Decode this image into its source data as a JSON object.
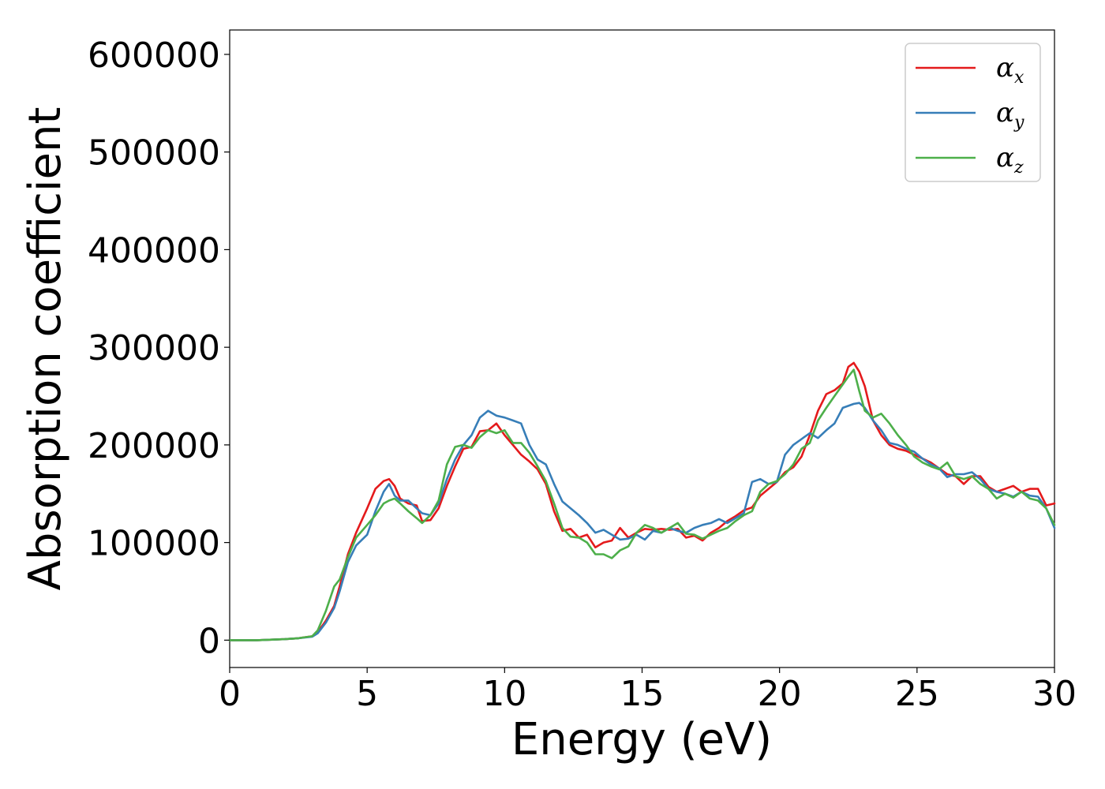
{
  "chart_data": {
    "type": "line",
    "xlabel": "Energy (eV)",
    "ylabel": "Absorption coefficient",
    "xlim": [
      0,
      30
    ],
    "ylim": [
      -28000,
      625000
    ],
    "xticks": [
      0,
      5,
      10,
      15,
      20,
      25,
      30
    ],
    "yticks": [
      0,
      100000,
      200000,
      300000,
      400000,
      500000,
      600000
    ],
    "grid": false,
    "legend_position": "top-right",
    "series": [
      {
        "name": "α",
        "subscript": "x",
        "color": "#e41a1c",
        "x": [
          0,
          1,
          2,
          2.5,
          3,
          3.2,
          3.5,
          3.8,
          4,
          4.3,
          4.6,
          5,
          5.3,
          5.6,
          5.8,
          6,
          6.2,
          6.5,
          6.8,
          7,
          7.3,
          7.6,
          7.9,
          8.2,
          8.5,
          8.8,
          9.1,
          9.4,
          9.7,
          10,
          10.3,
          10.6,
          10.9,
          11.2,
          11.5,
          11.8,
          12.1,
          12.4,
          12.7,
          13,
          13.3,
          13.6,
          13.9,
          14.2,
          14.5,
          14.8,
          15.1,
          15.4,
          15.7,
          16,
          16.3,
          16.6,
          16.9,
          17.2,
          17.5,
          17.8,
          18.1,
          18.4,
          18.7,
          19,
          19.3,
          19.6,
          19.9,
          20.2,
          20.5,
          20.8,
          21.1,
          21.4,
          21.7,
          22,
          22.3,
          22.5,
          22.7,
          22.9,
          23.1,
          23.4,
          23.7,
          24,
          24.3,
          24.6,
          24.9,
          25.2,
          25.5,
          25.8,
          26.1,
          26.4,
          26.7,
          27,
          27.3,
          27.6,
          27.9,
          28.2,
          28.5,
          28.8,
          29.1,
          29.4,
          29.7,
          30
        ],
        "y": [
          0,
          0,
          1000,
          2000,
          4000,
          8000,
          20000,
          35000,
          55000,
          88000,
          110000,
          135000,
          155000,
          163000,
          165000,
          158000,
          145000,
          140000,
          138000,
          122000,
          123000,
          135000,
          158000,
          178000,
          196000,
          198000,
          214000,
          215000,
          222000,
          210000,
          200000,
          190000,
          183000,
          175000,
          160000,
          132000,
          112000,
          114000,
          105000,
          108000,
          95000,
          100000,
          102000,
          115000,
          105000,
          110000,
          114000,
          113000,
          114000,
          113000,
          114000,
          105000,
          107000,
          102000,
          110000,
          115000,
          122000,
          127000,
          133000,
          136000,
          148000,
          155000,
          162000,
          172000,
          177000,
          188000,
          210000,
          235000,
          252000,
          256000,
          263000,
          280000,
          284000,
          275000,
          260000,
          225000,
          210000,
          200000,
          196000,
          194000,
          190000,
          186000,
          182000,
          176000,
          170000,
          168000,
          160000,
          168000,
          168000,
          157000,
          152000,
          155000,
          158000,
          152000,
          155000,
          155000,
          138000,
          140000
        ]
      },
      {
        "name": "α",
        "subscript": "y",
        "color": "#377eb8",
        "x": [
          0,
          1,
          2,
          2.5,
          3,
          3.2,
          3.5,
          3.8,
          4,
          4.3,
          4.6,
          5,
          5.3,
          5.6,
          5.8,
          6,
          6.2,
          6.5,
          6.8,
          7,
          7.3,
          7.6,
          7.9,
          8.2,
          8.5,
          8.8,
          9.1,
          9.4,
          9.7,
          10,
          10.3,
          10.6,
          10.9,
          11.2,
          11.5,
          11.8,
          12.1,
          12.4,
          12.7,
          13,
          13.3,
          13.6,
          13.9,
          14.2,
          14.5,
          14.8,
          15.1,
          15.4,
          15.7,
          16,
          16.3,
          16.6,
          16.9,
          17.2,
          17.5,
          17.8,
          18.1,
          18.4,
          18.7,
          19,
          19.3,
          19.6,
          19.9,
          20.2,
          20.5,
          20.8,
          21.1,
          21.4,
          21.7,
          22,
          22.3,
          22.5,
          22.7,
          22.9,
          23.1,
          23.4,
          23.7,
          24,
          24.3,
          24.6,
          24.9,
          25.2,
          25.5,
          25.8,
          26.1,
          26.4,
          26.7,
          27,
          27.3,
          27.6,
          27.9,
          28.2,
          28.5,
          28.8,
          29.1,
          29.4,
          29.7,
          30
        ],
        "y": [
          0,
          0,
          1000,
          2000,
          3500,
          7000,
          18000,
          33000,
          50000,
          80000,
          97000,
          108000,
          132000,
          152000,
          160000,
          148000,
          143000,
          143000,
          135000,
          130000,
          128000,
          140000,
          165000,
          185000,
          200000,
          210000,
          228000,
          235000,
          230000,
          228000,
          225000,
          222000,
          200000,
          185000,
          180000,
          160000,
          142000,
          135000,
          128000,
          120000,
          110000,
          113000,
          108000,
          103000,
          104000,
          108000,
          103000,
          112000,
          110000,
          115000,
          112000,
          110000,
          115000,
          118000,
          120000,
          124000,
          120000,
          125000,
          130000,
          162000,
          165000,
          160000,
          162000,
          190000,
          200000,
          206000,
          212000,
          207000,
          215000,
          222000,
          238000,
          240000,
          242000,
          243000,
          238000,
          225000,
          215000,
          202000,
          200000,
          196000,
          193000,
          186000,
          180000,
          176000,
          167000,
          170000,
          170000,
          172000,
          165000,
          155000,
          152000,
          150000,
          147000,
          152000,
          148000,
          147000,
          135000,
          115000
        ]
      },
      {
        "name": "α",
        "subscript": "z",
        "color": "#4daf4a",
        "x": [
          0,
          1,
          2,
          2.5,
          3,
          3.2,
          3.5,
          3.8,
          4,
          4.3,
          4.6,
          5,
          5.3,
          5.6,
          5.8,
          6,
          6.2,
          6.5,
          6.8,
          7,
          7.3,
          7.6,
          7.9,
          8.2,
          8.5,
          8.8,
          9.1,
          9.4,
          9.7,
          10,
          10.3,
          10.6,
          10.9,
          11.2,
          11.5,
          11.8,
          12.1,
          12.4,
          12.7,
          13,
          13.3,
          13.6,
          13.9,
          14.2,
          14.5,
          14.8,
          15.1,
          15.4,
          15.7,
          16,
          16.3,
          16.6,
          16.9,
          17.2,
          17.5,
          17.8,
          18.1,
          18.4,
          18.7,
          19,
          19.3,
          19.6,
          19.9,
          20.2,
          20.5,
          20.8,
          21.1,
          21.4,
          21.7,
          22,
          22.3,
          22.5,
          22.7,
          22.9,
          23.1,
          23.4,
          23.7,
          24,
          24.3,
          24.6,
          24.9,
          25.2,
          25.5,
          25.8,
          26.1,
          26.4,
          26.7,
          27,
          27.3,
          27.6,
          27.9,
          28.2,
          28.5,
          28.8,
          29.1,
          29.4,
          29.7,
          30
        ],
        "y": [
          0,
          0,
          1000,
          2000,
          4000,
          10000,
          30000,
          55000,
          62000,
          85000,
          105000,
          118000,
          128000,
          140000,
          143000,
          145000,
          140000,
          132000,
          125000,
          120000,
          128000,
          143000,
          180000,
          198000,
          200000,
          197000,
          208000,
          215000,
          212000,
          215000,
          202000,
          202000,
          192000,
          178000,
          163000,
          140000,
          115000,
          106000,
          105000,
          100000,
          88000,
          88000,
          84000,
          92000,
          96000,
          110000,
          118000,
          115000,
          110000,
          115000,
          120000,
          109000,
          108000,
          104000,
          108000,
          112000,
          115000,
          122000,
          128000,
          132000,
          152000,
          160000,
          163000,
          170000,
          180000,
          196000,
          202000,
          225000,
          238000,
          250000,
          262000,
          270000,
          277000,
          255000,
          235000,
          228000,
          232000,
          222000,
          210000,
          200000,
          188000,
          182000,
          178000,
          175000,
          182000,
          168000,
          165000,
          168000,
          160000,
          155000,
          145000,
          150000,
          146000,
          152000,
          145000,
          143000,
          135000,
          118000
        ]
      }
    ]
  }
}
